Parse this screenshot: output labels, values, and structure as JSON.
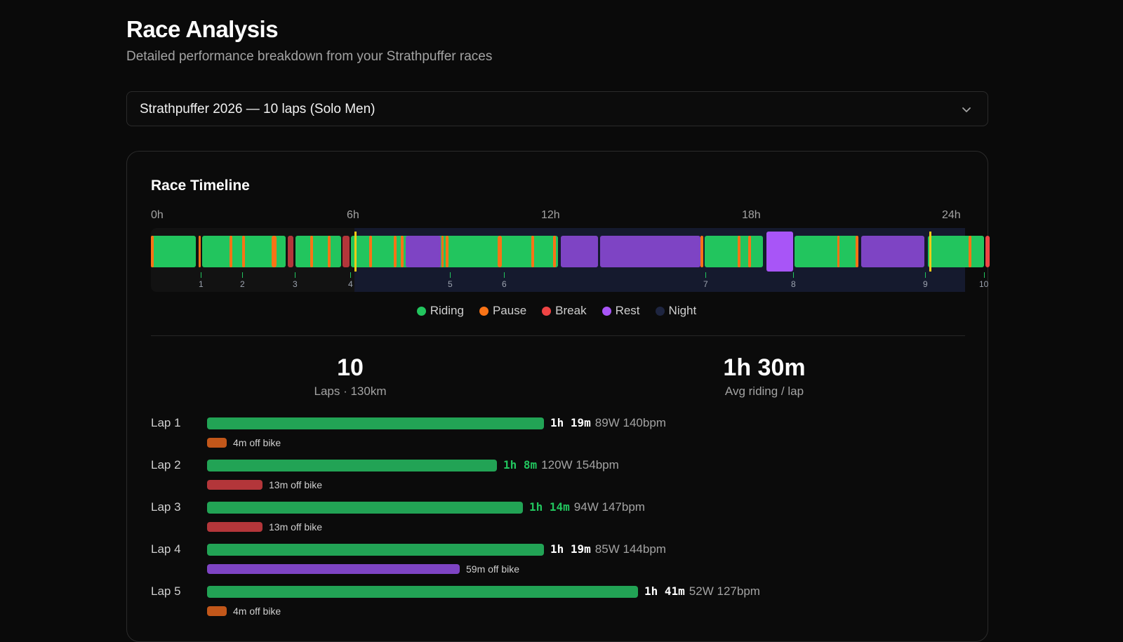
{
  "header": {
    "title": "Race Analysis",
    "subtitle": "Detailed performance breakdown from your Strathpuffer races"
  },
  "race_select": {
    "value": "Strathpuffer 2026 — 10 laps (Solo Men)",
    "icon": "chevron-down-icon"
  },
  "timeline": {
    "title": "Race Timeline",
    "ticks": [
      "0h",
      "6h",
      "12h",
      "18h",
      "24h"
    ],
    "lap_markers": [
      "1",
      "2",
      "3",
      "4",
      "5",
      "6",
      "7",
      "8",
      "9",
      "10"
    ],
    "legend": [
      {
        "label": "Riding",
        "color": "#22c55e"
      },
      {
        "label": "Pause",
        "color": "#f97316"
      },
      {
        "label": "Break",
        "color": "#ef4444"
      },
      {
        "label": "Rest",
        "color": "#a855f7"
      },
      {
        "label": "Night",
        "color": "#1e2540"
      }
    ]
  },
  "summary": {
    "laps_value": "10",
    "laps_label": "Laps · 130km",
    "avg_value": "1h 30m",
    "avg_label": "Avg riding / lap"
  },
  "laps": [
    {
      "label": "Lap 1",
      "time": "1h 19m",
      "power": "89W",
      "hr": "140bpm",
      "off": "4m off bike",
      "best": false,
      "ride_fraction": 0.79,
      "off_minutes": 4,
      "off_type": "pause"
    },
    {
      "label": "Lap 2",
      "time": "1h 8m",
      "power": "120W",
      "hr": "154bpm",
      "off": "13m off bike",
      "best": true,
      "ride_fraction": 0.68,
      "off_minutes": 13,
      "off_type": "break"
    },
    {
      "label": "Lap 3",
      "time": "1h 14m",
      "power": "94W",
      "hr": "147bpm",
      "off": "13m off bike",
      "best": true,
      "ride_fraction": 0.74,
      "off_minutes": 13,
      "off_type": "break"
    },
    {
      "label": "Lap 4",
      "time": "1h 19m",
      "power": "85W",
      "hr": "144bpm",
      "off": "59m off bike",
      "best": false,
      "ride_fraction": 0.79,
      "off_minutes": 59,
      "off_type": "rest"
    },
    {
      "label": "Lap 5",
      "time": "1h 41m",
      "power": "52W",
      "hr": "127bpm",
      "off": "4m off bike",
      "best": false,
      "ride_fraction": 1.01,
      "off_minutes": 4,
      "off_type": "pause"
    }
  ]
}
